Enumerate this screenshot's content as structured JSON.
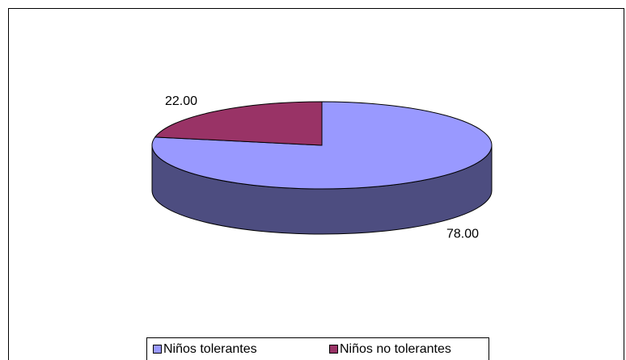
{
  "chart_data": {
    "type": "pie",
    "categories": [
      "Niños tolerantes",
      "Niños no tolerantes"
    ],
    "values": [
      78,
      22
    ],
    "value_labels": [
      "78.00",
      "22.00"
    ],
    "colors": [
      "#9999ff",
      "#993366"
    ],
    "legend": "bottom"
  }
}
